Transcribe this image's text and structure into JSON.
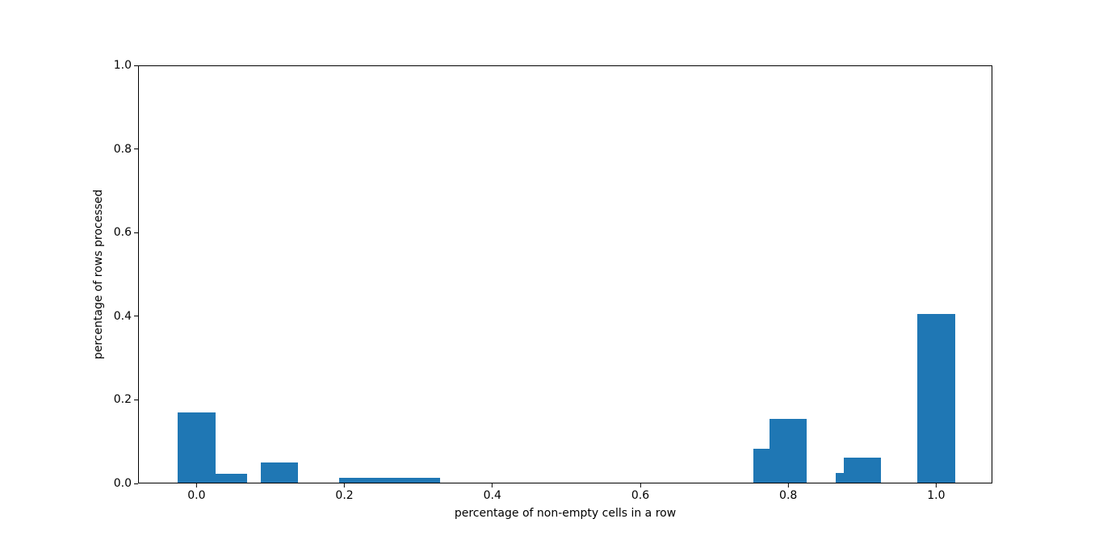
{
  "figure": {
    "background": "#ffffff",
    "spine_color": "#000000",
    "text_color": "#000000"
  },
  "chart_data": {
    "type": "bar",
    "subtype": "histogram",
    "title": "",
    "xlabel": "percentage of non-empty cells in a row",
    "ylabel": "percentage of rows processed",
    "xlim": [
      -0.079,
      1.076
    ],
    "ylim": [
      0,
      1.0
    ],
    "grid": false,
    "legend": null,
    "bar_color": "#1f77b4",
    "x_ticks": [
      {
        "value": 0.0,
        "label": "0.0"
      },
      {
        "value": 0.2,
        "label": "0.2"
      },
      {
        "value": 0.4,
        "label": "0.4"
      },
      {
        "value": 0.6,
        "label": "0.6"
      },
      {
        "value": 0.8,
        "label": "0.8"
      },
      {
        "value": 1.0,
        "label": "1.0"
      }
    ],
    "y_ticks": [
      {
        "value": 0.0,
        "label": "0.0"
      },
      {
        "value": 0.2,
        "label": "0.2"
      },
      {
        "value": 0.4,
        "label": "0.4"
      },
      {
        "value": 0.6,
        "label": "0.6"
      },
      {
        "value": 0.8,
        "label": "0.8"
      },
      {
        "value": 1.0,
        "label": "1.0"
      }
    ],
    "bars": [
      {
        "x0": -0.027,
        "x1": 0.025,
        "height": 0.168
      },
      {
        "x0": 0.025,
        "x1": 0.068,
        "height": 0.022
      },
      {
        "x0": 0.086,
        "x1": 0.137,
        "height": 0.049
      },
      {
        "x0": 0.192,
        "x1": 0.329,
        "height": 0.012
      },
      {
        "x0": 0.753,
        "x1": 0.775,
        "height": 0.082
      },
      {
        "x0": 0.775,
        "x1": 0.826,
        "height": 0.154
      },
      {
        "x0": 0.865,
        "x1": 0.876,
        "height": 0.023
      },
      {
        "x0": 0.876,
        "x1": 0.926,
        "height": 0.061
      },
      {
        "x0": 0.975,
        "x1": 1.027,
        "height": 0.405
      }
    ]
  }
}
